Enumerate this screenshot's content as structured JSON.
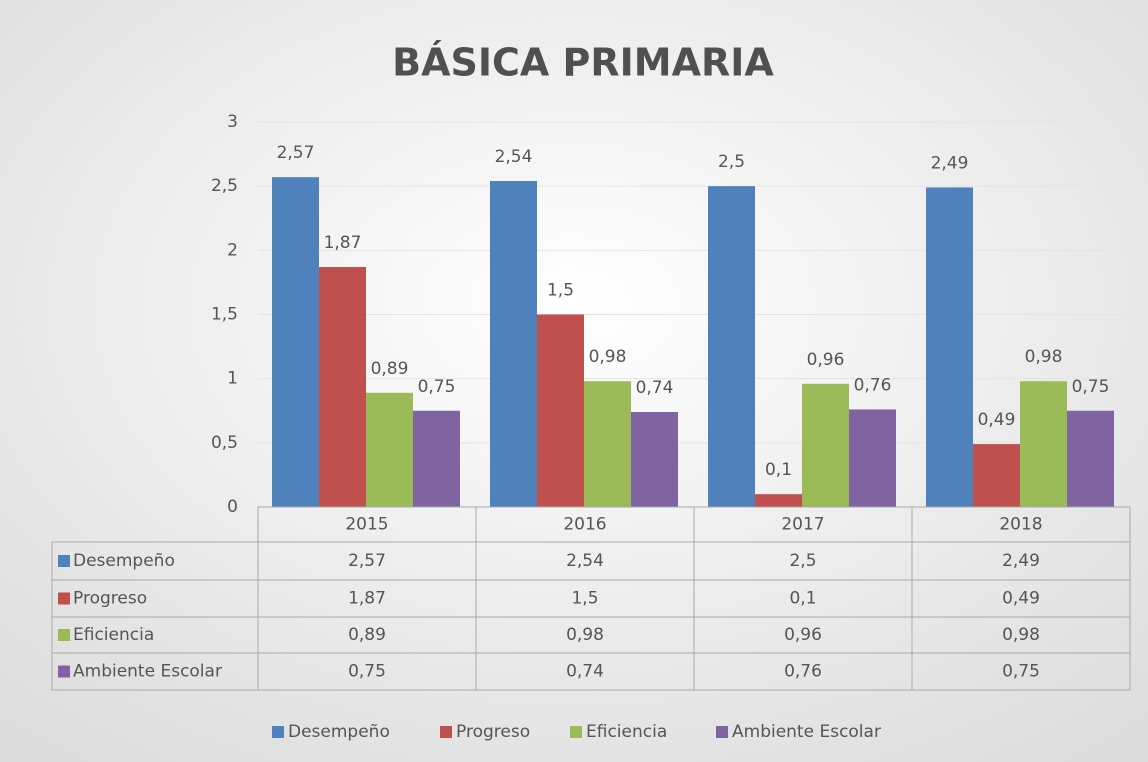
{
  "chart_data": {
    "type": "bar",
    "title": "BÁSICA PRIMARIA",
    "categories": [
      "2015",
      "2016",
      "2017",
      "2018"
    ],
    "series": [
      {
        "name": "Desempeño",
        "color": "#4f81bd",
        "values": [
          2.57,
          2.54,
          2.5,
          2.49
        ],
        "value_labels": [
          "2,57",
          "2,54",
          "2,5",
          "2,49"
        ]
      },
      {
        "name": "Progreso",
        "color": "#c0504d",
        "values": [
          1.87,
          1.5,
          0.1,
          0.49
        ],
        "value_labels": [
          "1,87",
          "1,5",
          "0,1",
          "0,49"
        ]
      },
      {
        "name": "Eficiencia",
        "color": "#9bbb59",
        "values": [
          0.89,
          0.98,
          0.96,
          0.98
        ],
        "value_labels": [
          "0,89",
          "0,98",
          "0,96",
          "0,98"
        ]
      },
      {
        "name": "Ambiente Escolar",
        "color": "#8064a2",
        "values": [
          0.75,
          0.74,
          0.76,
          0.75
        ],
        "value_labels": [
          "0,75",
          "0,74",
          "0,76",
          "0,75"
        ]
      }
    ],
    "ylim": [
      0,
      3
    ],
    "yticks": [
      0,
      {
        "value": 0.5,
        "label": "0,5"
      },
      1,
      {
        "value": 1.5,
        "label": "1,5"
      },
      2,
      {
        "value": 2.5,
        "label": "2,5"
      },
      3
    ],
    "grid": true
  }
}
